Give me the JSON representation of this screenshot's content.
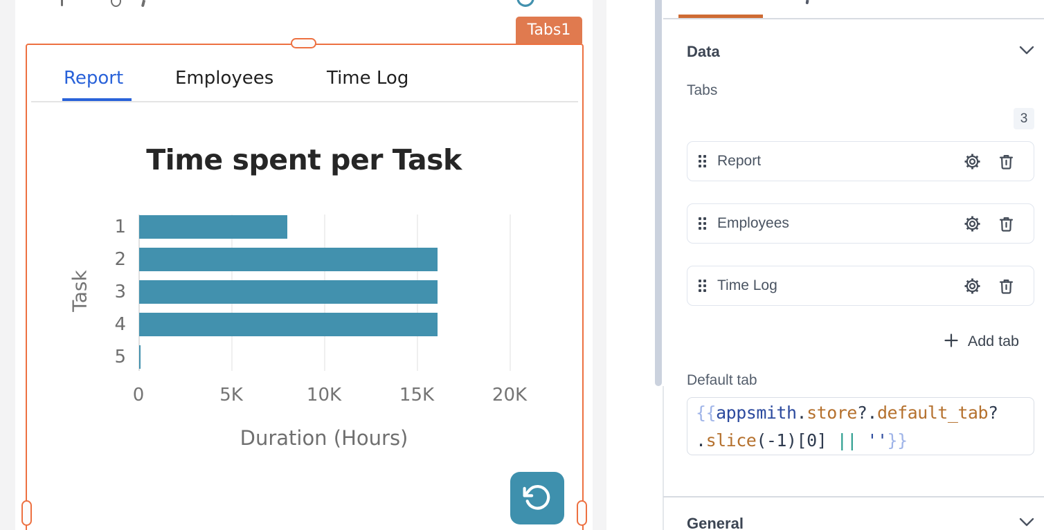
{
  "canvas": {
    "widget_name_badge": "Tabs1",
    "widget_tabs": [
      {
        "label": "Report",
        "active": true
      },
      {
        "label": "Employees",
        "active": false
      },
      {
        "label": "Time Log",
        "active": false
      }
    ]
  },
  "chart_data": {
    "type": "bar",
    "orientation": "horizontal",
    "title": "Time spent per Task",
    "categories": [
      "1",
      "2",
      "3",
      "4",
      "5"
    ],
    "values": [
      8000,
      16100,
      16100,
      16100,
      75
    ],
    "xlabel": "Duration (Hours)",
    "ylabel": "Task",
    "xlim": [
      0,
      20000
    ],
    "xticks": [
      {
        "value": 0,
        "label": "0"
      },
      {
        "value": 5000,
        "label": "5K"
      },
      {
        "value": 10000,
        "label": "10K"
      },
      {
        "value": 15000,
        "label": "15K"
      },
      {
        "value": 20000,
        "label": "20K"
      }
    ],
    "bar_color": "#4291AE",
    "grid": true,
    "legend": false
  },
  "property_pane": {
    "data_section_title": "Data",
    "tabs_field_label": "Tabs",
    "tabs_count": "3",
    "tab_items": [
      {
        "label": "Report"
      },
      {
        "label": "Employees"
      },
      {
        "label": "Time Log"
      }
    ],
    "add_tab_label": "Add tab",
    "default_tab_label": "Default tab",
    "default_tab_code": "{{appsmith.store?.default_tab?.slice(-1)[0] || ''}}",
    "code_lines": [
      [
        {
          "t": "{{",
          "c": "#9FB4E8"
        },
        {
          "t": "appsmith",
          "c": "#2C4A9E"
        },
        {
          "t": ".",
          "c": "#2E3A4E"
        },
        {
          "t": "store",
          "c": "#B5712E"
        },
        {
          "t": "?.",
          "c": "#2E3A4E"
        },
        {
          "t": "default_tab",
          "c": "#B5712E"
        },
        {
          "t": "?",
          "c": "#2E3A4E"
        }
      ],
      [
        {
          "t": ".",
          "c": "#2E3A4E"
        },
        {
          "t": "slice",
          "c": "#B5712E"
        },
        {
          "t": "(-1)[0]",
          "c": "#2E3A4E"
        },
        {
          "t": " ",
          "c": "#2E3A4E"
        },
        {
          "t": "||",
          "c": "#279B8C"
        },
        {
          "t": " ",
          "c": "#2E3A4E"
        },
        {
          "t": "''",
          "c": "#2C4A9E"
        },
        {
          "t": "}}",
          "c": "#9FB4E8"
        }
      ]
    ],
    "general_section_title": "General"
  },
  "colors": {
    "selection_orange": "#ED7040",
    "widget_badge_bg": "#E07A4F",
    "accent_teal": "#4291AE",
    "active_tab_blue": "#2962D9",
    "pane_tab_underline": "#CE6B33",
    "scrollbar_thumb": "#CBD2DE"
  }
}
